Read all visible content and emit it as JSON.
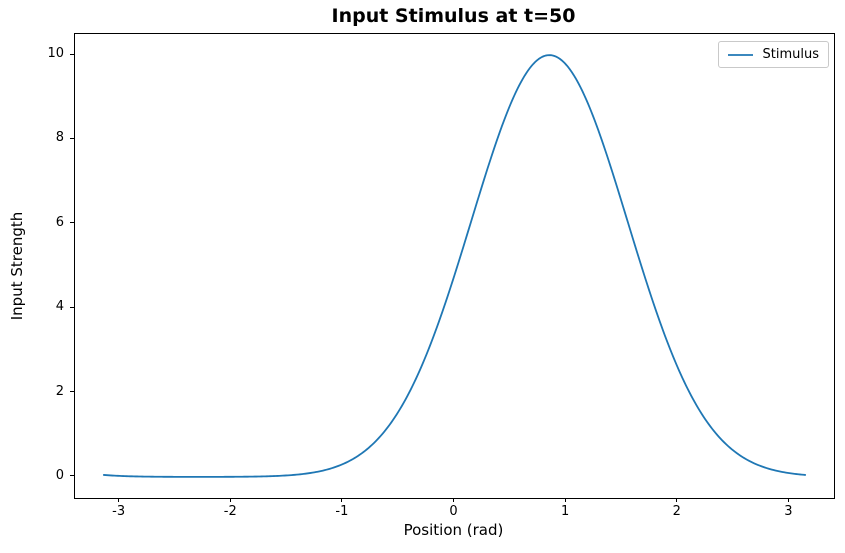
{
  "chart_data": {
    "type": "line",
    "title": "Input Stimulus at t=50",
    "xlabel": "Position (rad)",
    "ylabel": "Input Strength",
    "legend_entries": [
      "Stimulus"
    ],
    "legend_position": "upper right",
    "grid": false,
    "xlim": [
      -3.4,
      3.4
    ],
    "ylim": [
      -0.5,
      10.5
    ],
    "x_ticks": [
      "-3",
      "-2",
      "-1",
      "0",
      "1",
      "2",
      "3"
    ],
    "x_tick_values": [
      -3,
      -2,
      -1,
      0,
      1,
      2,
      3
    ],
    "y_ticks": [
      "0",
      "2",
      "4",
      "6",
      "8",
      "10"
    ],
    "y_tick_values": [
      0,
      2,
      4,
      6,
      8,
      10
    ],
    "line_color": "#1f77b4",
    "series": [
      {
        "name": "Stimulus",
        "model": {
          "shape": "wrapped-gaussian",
          "amplitude": 10,
          "center_rad": 0.85,
          "sigma_rad": 0.7,
          "x_min": -3.1416,
          "x_max": 3.1416,
          "period": 6.2832
        },
        "peak": {
          "x": 0.85,
          "y": 10.0
        },
        "x": [
          -3.142,
          -2.985,
          -2.827,
          -2.67,
          -2.513,
          -2.356,
          -2.199,
          -2.042,
          -1.885,
          -1.728,
          -1.571,
          -1.414,
          -1.257,
          -1.1,
          -0.942,
          -0.785,
          -0.628,
          -0.471,
          -0.314,
          -0.157,
          0,
          0.157,
          0.314,
          0.471,
          0.628,
          0.785,
          0.942,
          1.1,
          1.257,
          1.414,
          1.571,
          1.728,
          1.885,
          2.042,
          2.199,
          2.356,
          2.513,
          2.67,
          2.827,
          2.985,
          3.142
        ],
        "y": [
          0.047,
          0.022,
          0.01,
          0.004,
          0.002,
          0.001,
          0.001,
          0.002,
          0.005,
          0.011,
          0.025,
          0.054,
          0.108,
          0.207,
          0.377,
          0.653,
          1.075,
          1.684,
          2.508,
          3.552,
          4.785,
          6.127,
          7.46,
          8.638,
          9.511,
          9.957,
          9.913,
          9.384,
          8.448,
          7.23,
          5.885,
          4.555,
          3.352,
          2.346,
          1.561,
          0.988,
          0.594,
          0.34,
          0.185,
          0.096,
          0.047
        ]
      }
    ]
  }
}
